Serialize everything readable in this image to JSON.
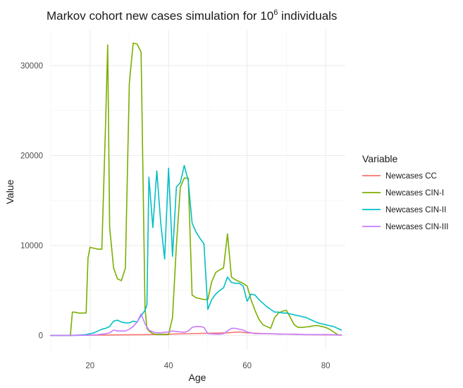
{
  "chart_data": {
    "type": "line",
    "title": "Markov cohort new cases simulation for 10",
    "title_superscript": "6",
    "title_suffix": " individuals",
    "xlabel": "Age",
    "ylabel": "Value",
    "xlim": [
      10,
      85
    ],
    "ylim": [
      -1600,
      34000
    ],
    "x_ticks": [
      20,
      40,
      60,
      80
    ],
    "y_ticks": [
      0,
      10000,
      20000,
      30000
    ],
    "grid": true,
    "legend_title": "Variable",
    "legend_position": "right",
    "series": [
      {
        "name": "Newcases CC",
        "color": "#F8766D",
        "x": [
          10,
          15,
          20,
          25,
          30,
          35,
          40,
          45,
          50,
          55,
          58,
          60,
          65,
          70,
          75,
          80,
          84
        ],
        "y": [
          0,
          20,
          40,
          60,
          80,
          100,
          150,
          200,
          250,
          300,
          400,
          300,
          200,
          150,
          100,
          80,
          60
        ]
      },
      {
        "name": "Newcases CIN-I",
        "color": "#7CAE00",
        "x": [
          10,
          15,
          15.5,
          16,
          17,
          18,
          19,
          19.5,
          20,
          21,
          22,
          23,
          24,
          24.5,
          25,
          26,
          27,
          28,
          29,
          30,
          31,
          32,
          33,
          34,
          34.5,
          35,
          36,
          37,
          38,
          39,
          40,
          41,
          42,
          43,
          44,
          45,
          46,
          47,
          48,
          49,
          50,
          51,
          52,
          53,
          54,
          55,
          56,
          57,
          58,
          59,
          60,
          61,
          62,
          63,
          64,
          65,
          66,
          67,
          68,
          69,
          70,
          71,
          72,
          73,
          74,
          75,
          76,
          77,
          78,
          79,
          80,
          81,
          82,
          83,
          84
        ],
        "y": [
          0,
          0,
          2600,
          2600,
          2500,
          2500,
          2500,
          8600,
          9800,
          9700,
          9600,
          9600,
          24000,
          32300,
          12000,
          7500,
          6300,
          6100,
          7500,
          28000,
          32500,
          32400,
          31500,
          3000,
          800,
          500,
          200,
          100,
          100,
          100,
          100,
          2000,
          10000,
          16500,
          17500,
          17500,
          4500,
          4200,
          4100,
          4000,
          4000,
          6000,
          7000,
          7300,
          7500,
          11300,
          6500,
          6200,
          6000,
          5800,
          5500,
          4000,
          2800,
          1800,
          1200,
          1000,
          800,
          2000,
          2500,
          2700,
          2800,
          2000,
          1200,
          900,
          900,
          950,
          1000,
          1100,
          1100,
          1000,
          900,
          700,
          400,
          100,
          50
        ]
      },
      {
        "name": "Newcases CIN-II",
        "color": "#00BFC4",
        "x": [
          10,
          15,
          17,
          19,
          20,
          21,
          22,
          23,
          24,
          25,
          26,
          27,
          28,
          29,
          30,
          31,
          32,
          33,
          34,
          34.5,
          35,
          36,
          37,
          38,
          39,
          40,
          41,
          42,
          43,
          44,
          45,
          46,
          47,
          48,
          49,
          50,
          51,
          52,
          53,
          54,
          55,
          56,
          57,
          58,
          59,
          60,
          61,
          62,
          63,
          64,
          65,
          66,
          67,
          68,
          69,
          70,
          71,
          72,
          73,
          74,
          75,
          76,
          77,
          78,
          79,
          80,
          81,
          82,
          83,
          84
        ],
        "y": [
          0,
          0,
          50,
          100,
          200,
          300,
          500,
          700,
          800,
          1000,
          1600,
          1700,
          1500,
          1400,
          1400,
          1600,
          1500,
          2200,
          2800,
          3400,
          17600,
          12000,
          18300,
          12500,
          8500,
          18600,
          8800,
          16500,
          17000,
          18900,
          17200,
          12500,
          11500,
          10800,
          10200,
          2900,
          4000,
          4600,
          5000,
          5300,
          6500,
          5900,
          5800,
          5800,
          5500,
          3800,
          4600,
          4500,
          4000,
          3600,
          3200,
          2900,
          2600,
          2600,
          2500,
          2500,
          2400,
          2300,
          2200,
          2100,
          2000,
          1800,
          1600,
          1400,
          1300,
          1200,
          1100,
          1000,
          800,
          600
        ]
      },
      {
        "name": "Newcases CIN-III",
        "color": "#C77CFF",
        "x": [
          10,
          15,
          18,
          20,
          22,
          24,
          25,
          26,
          27,
          28,
          29,
          30,
          31,
          32,
          33,
          34,
          35,
          36,
          37,
          38,
          39,
          40,
          41,
          42,
          43,
          44,
          45,
          46,
          47,
          48,
          49,
          50,
          52,
          53,
          54,
          55,
          56,
          57,
          58,
          59,
          60,
          61,
          62,
          64,
          66,
          68,
          70,
          72,
          74,
          76,
          78,
          80,
          82,
          84
        ],
        "y": [
          0,
          0,
          20,
          50,
          100,
          200,
          300,
          600,
          500,
          500,
          500,
          700,
          1000,
          1500,
          2400,
          1300,
          600,
          400,
          300,
          300,
          350,
          400,
          500,
          450,
          400,
          350,
          500,
          900,
          1000,
          1000,
          900,
          200,
          150,
          150,
          200,
          500,
          800,
          800,
          700,
          600,
          400,
          300,
          200,
          200,
          200,
          150,
          150,
          150,
          100,
          100,
          100,
          100,
          80,
          50
        ]
      }
    ]
  }
}
